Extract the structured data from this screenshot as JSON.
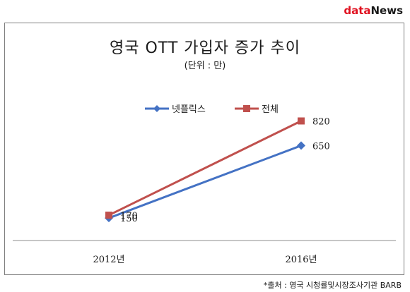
{
  "logo": {
    "part1": "data",
    "part2": "News"
  },
  "chart_data": {
    "type": "line",
    "title": "영국 OTT 가입자 증가 추이",
    "subtitle": "(단위 : 만)",
    "categories": [
      "2012년",
      "2016년"
    ],
    "series": [
      {
        "name": "넷플릭스",
        "values": [
          150,
          650
        ],
        "color": "#4472c4",
        "marker": "diamond"
      },
      {
        "name": "전체",
        "values": [
          170,
          820
        ],
        "color": "#c0504d",
        "marker": "square"
      }
    ],
    "legend_position": "top-center",
    "grid": false
  },
  "source": "*출처 : 영국 시청률및시장조사기관 BARB"
}
